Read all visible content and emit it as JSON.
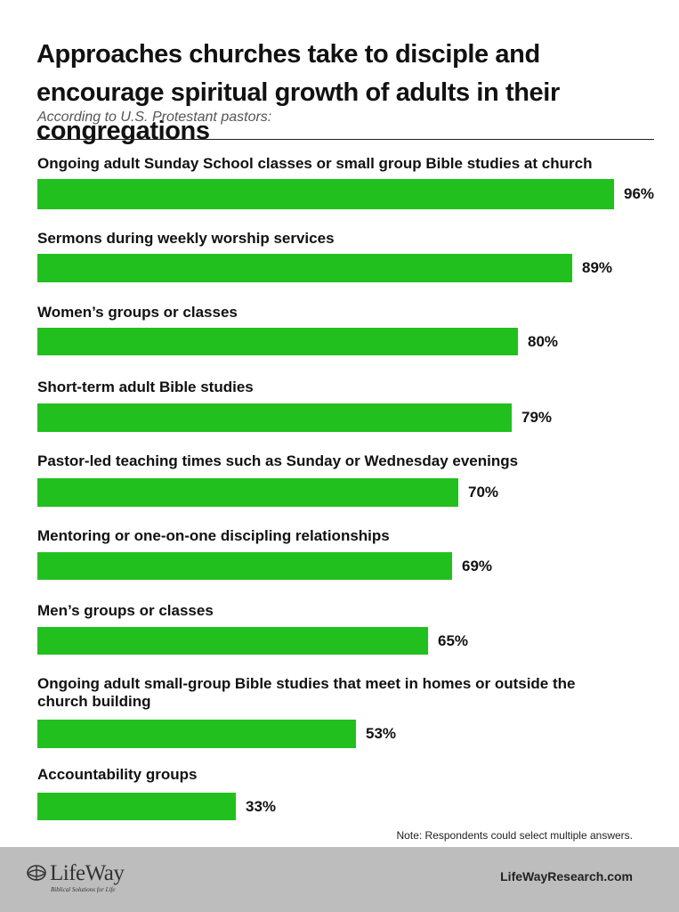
{
  "header": {
    "title": "Approaches churches take to disciple and encourage spiritual growth of adults in their congregations",
    "subtitle": "According to U.S. Protestant pastors:"
  },
  "colors": {
    "bar": "#22c01e",
    "footer": "#bdbdbd"
  },
  "chart_data": {
    "type": "bar",
    "orientation": "horizontal",
    "categories": [
      "Ongoing adult Sunday School classes or small group Bible studies at church",
      "Sermons during weekly worship services",
      "Women’s groups or classes",
      "Short-term adult Bible studies",
      "Pastor-led teaching times such as Sunday or Wednesday evenings",
      "Mentoring or one-on-one discipling relationships",
      "Men’s groups or classes",
      "Ongoing adult small-group Bible studies that meet in homes or outside the church building",
      "Accountability groups"
    ],
    "values": [
      96,
      89,
      80,
      79,
      70,
      69,
      65,
      53,
      33
    ],
    "value_labels": [
      "96%",
      "89%",
      "80%",
      "79%",
      "70%",
      "69%",
      "65%",
      "53%",
      "33%"
    ],
    "unit": "%",
    "xlim": [
      0,
      100
    ],
    "grid": false,
    "legend": "none"
  },
  "note": "Note: Respondents could select multiple answers.",
  "footer": {
    "logo_text": "LifeWay",
    "logo_tagline": "Biblical Solutions for Life",
    "logo_icon": "lifeway-globe-icon",
    "website": "LifeWayResearch.com"
  }
}
